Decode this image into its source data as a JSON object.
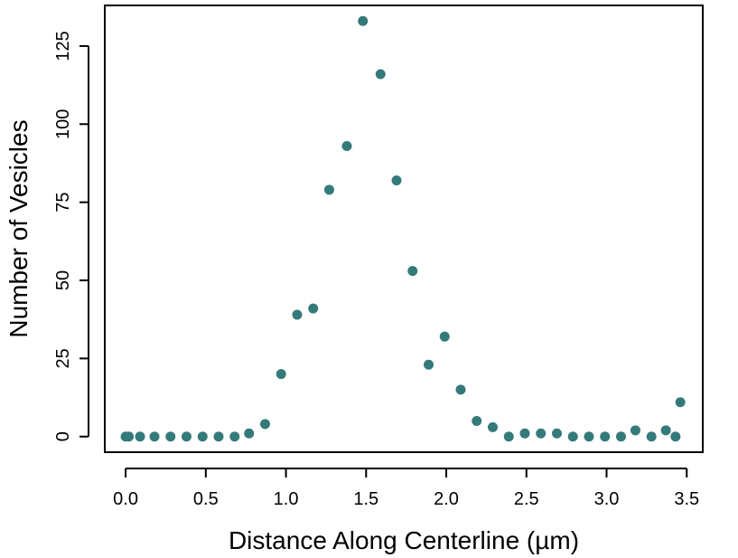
{
  "chart_data": {
    "type": "scatter",
    "xlabel": "Distance Along Centerline (µm)",
    "ylabel": "Number of Vesicles",
    "xlim": [
      -0.13,
      3.6
    ],
    "ylim": [
      -5,
      138
    ],
    "xticks": [
      0.0,
      0.5,
      1.0,
      1.5,
      2.0,
      2.5,
      3.0,
      3.5
    ],
    "xtick_labels": [
      "0.0",
      "0.5",
      "1.0",
      "1.5",
      "2.0",
      "2.5",
      "3.0",
      "3.5"
    ],
    "yticks": [
      0,
      25,
      50,
      75,
      100,
      125
    ],
    "ytick_labels": [
      "0",
      "25",
      "50",
      "75",
      "100",
      "125"
    ],
    "grid": false,
    "marker_color": "#357a7a",
    "points": [
      {
        "x": 0.0,
        "y": 0
      },
      {
        "x": 0.02,
        "y": 0
      },
      {
        "x": 0.09,
        "y": 0
      },
      {
        "x": 0.18,
        "y": 0
      },
      {
        "x": 0.28,
        "y": 0
      },
      {
        "x": 0.38,
        "y": 0
      },
      {
        "x": 0.48,
        "y": 0
      },
      {
        "x": 0.58,
        "y": 0
      },
      {
        "x": 0.68,
        "y": 0
      },
      {
        "x": 0.77,
        "y": 1
      },
      {
        "x": 0.87,
        "y": 4
      },
      {
        "x": 0.97,
        "y": 20
      },
      {
        "x": 1.07,
        "y": 39
      },
      {
        "x": 1.17,
        "y": 41
      },
      {
        "x": 1.27,
        "y": 79
      },
      {
        "x": 1.38,
        "y": 93
      },
      {
        "x": 1.48,
        "y": 133
      },
      {
        "x": 1.59,
        "y": 116
      },
      {
        "x": 1.69,
        "y": 82
      },
      {
        "x": 1.79,
        "y": 53
      },
      {
        "x": 1.89,
        "y": 23
      },
      {
        "x": 1.99,
        "y": 32
      },
      {
        "x": 2.09,
        "y": 15
      },
      {
        "x": 2.19,
        "y": 5
      },
      {
        "x": 2.29,
        "y": 3
      },
      {
        "x": 2.39,
        "y": 0
      },
      {
        "x": 2.49,
        "y": 1
      },
      {
        "x": 2.59,
        "y": 1
      },
      {
        "x": 2.69,
        "y": 1
      },
      {
        "x": 2.79,
        "y": 0
      },
      {
        "x": 2.89,
        "y": 0
      },
      {
        "x": 2.99,
        "y": 0
      },
      {
        "x": 3.09,
        "y": 0
      },
      {
        "x": 3.18,
        "y": 2
      },
      {
        "x": 3.28,
        "y": 0
      },
      {
        "x": 3.37,
        "y": 2
      },
      {
        "x": 3.43,
        "y": 0
      },
      {
        "x": 3.46,
        "y": 11
      }
    ]
  }
}
